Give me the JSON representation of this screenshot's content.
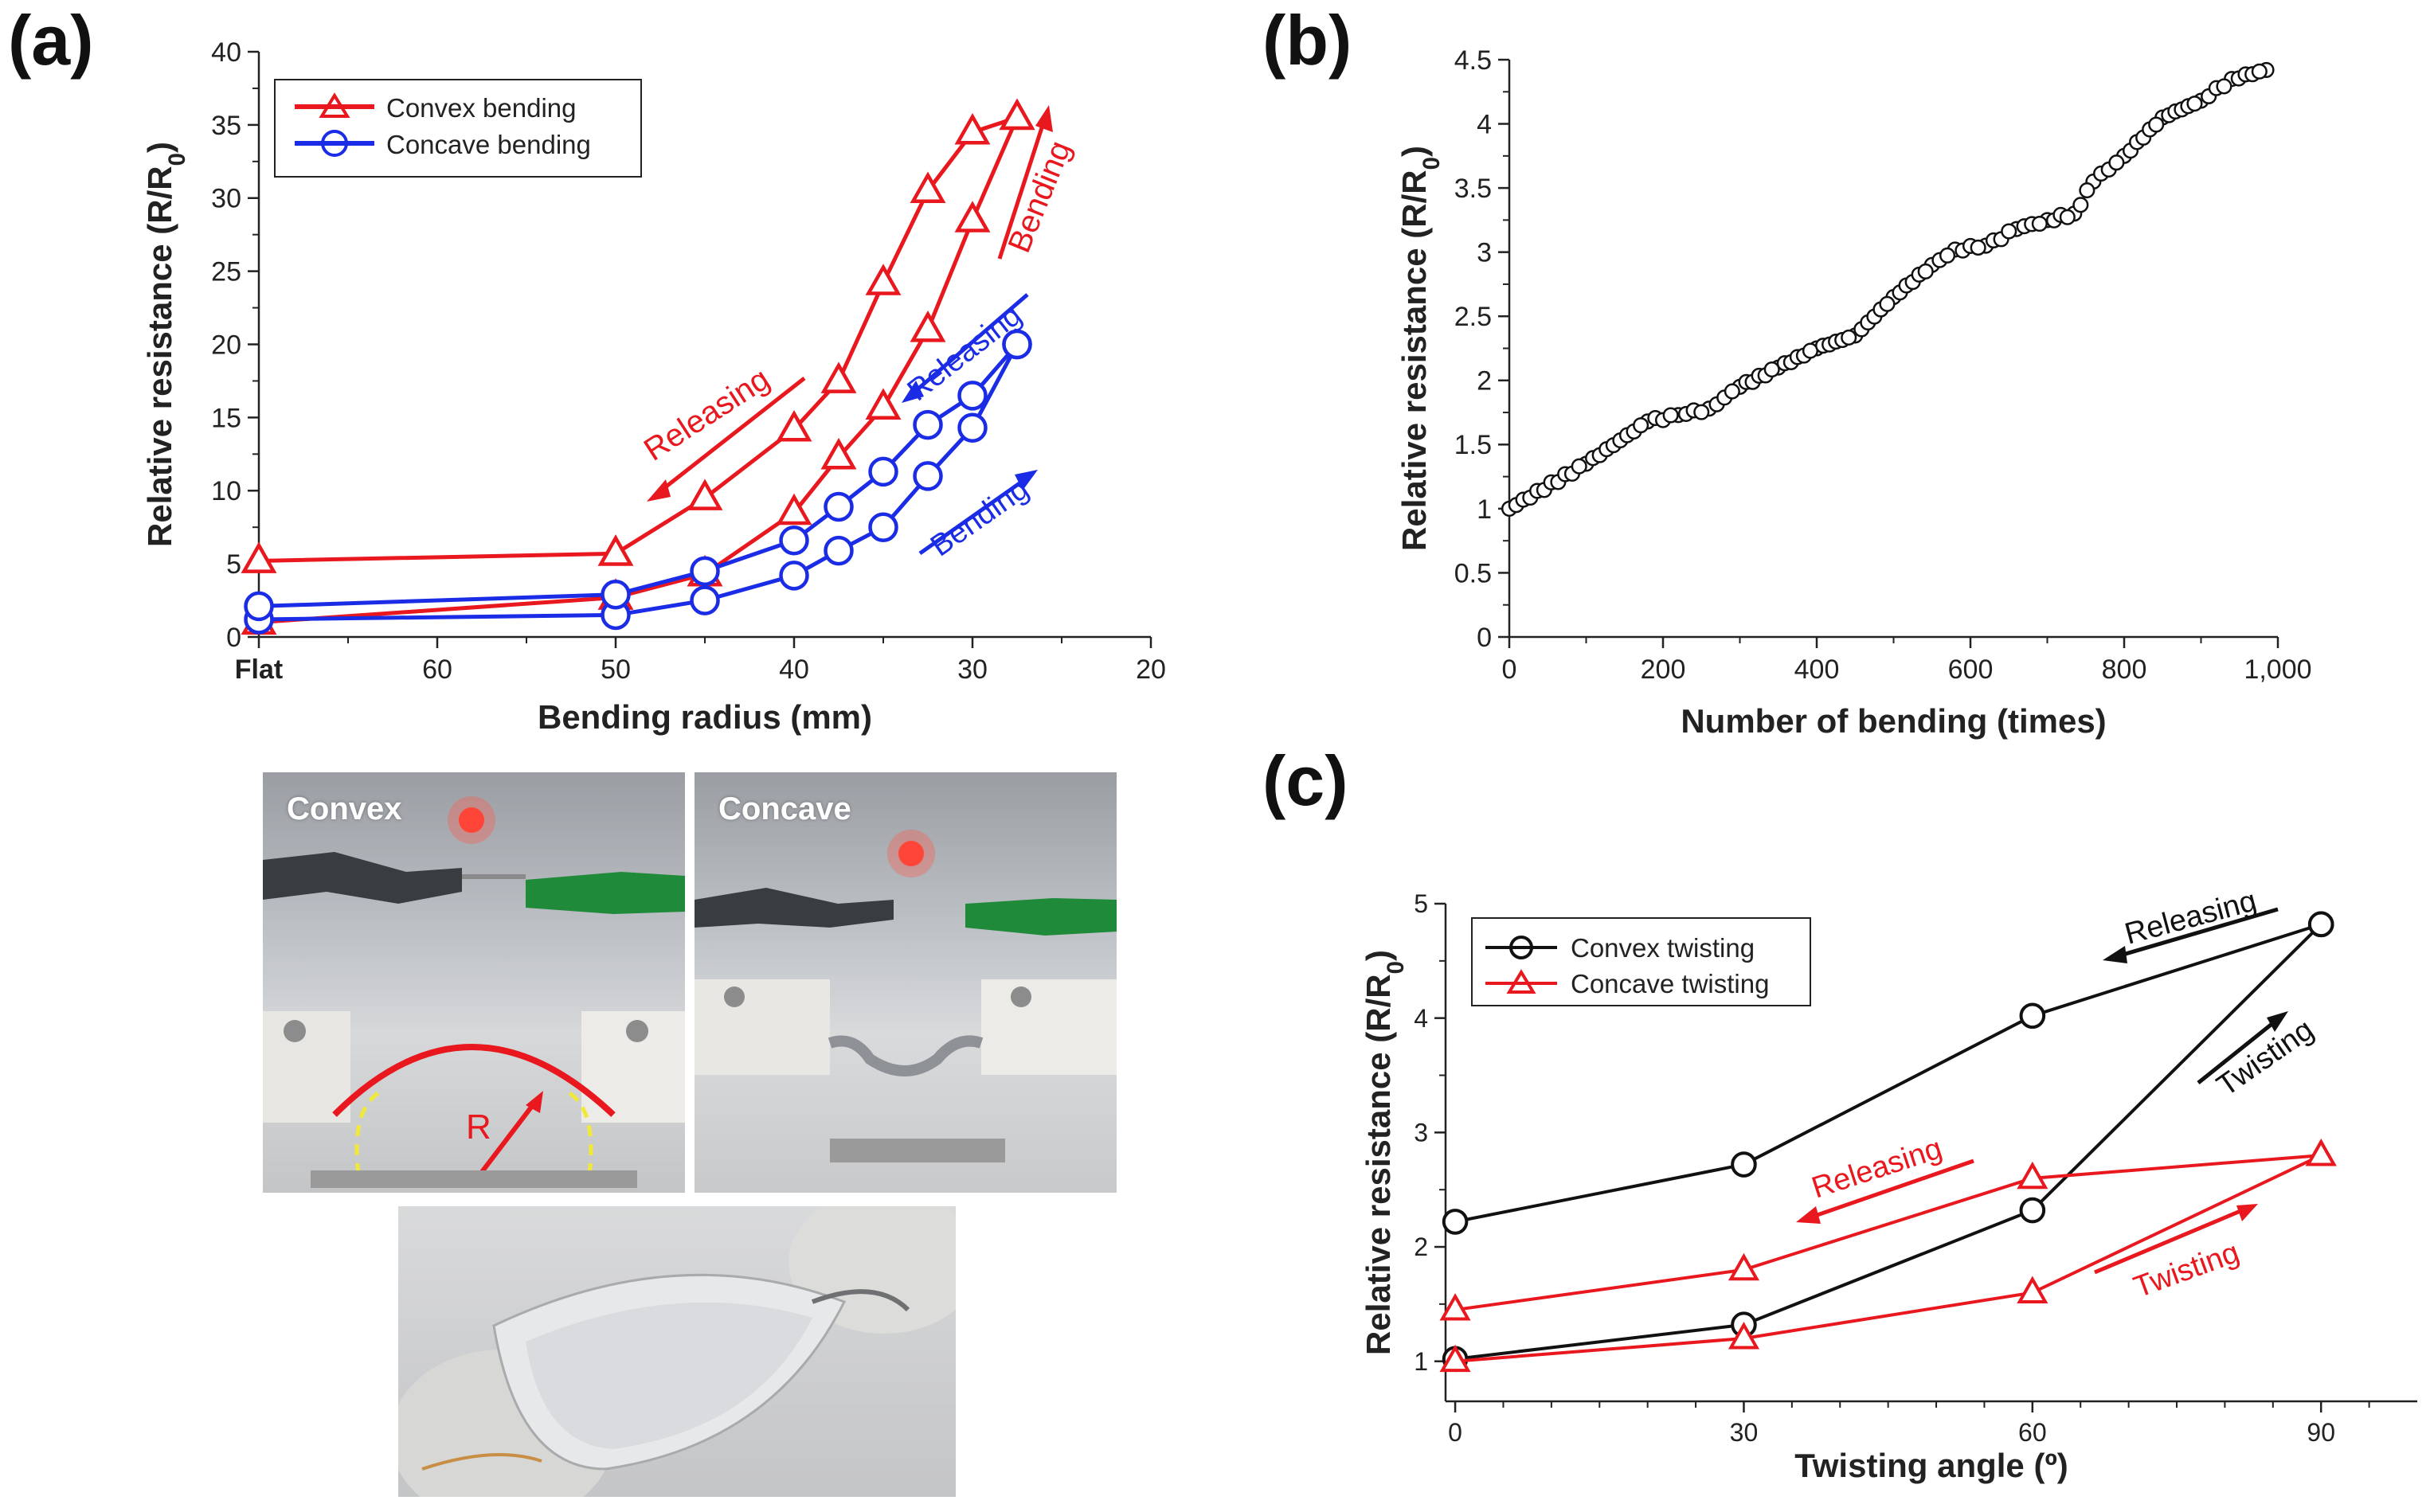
{
  "panels": {
    "a": {
      "label": "(a)"
    },
    "b": {
      "label": "(b)"
    },
    "c": {
      "label": "(c)"
    }
  },
  "photos": {
    "convex_caption": "Convex",
    "concave_caption": "Concave",
    "radius_label": "R"
  },
  "colors": {
    "red": "#e8181e",
    "blue": "#1a2ce6",
    "black": "#111111"
  },
  "chart_data": [
    {
      "id": "a",
      "type": "line",
      "xlabel": "Bending radius (mm)",
      "ylabel": "Relative resistance (R/R₀)",
      "ylabel_main": "Relative resistance (R/R",
      "ylabel_sub": "0",
      "ylabel_close": ")",
      "xlim": [
        70,
        20
      ],
      "ylim": [
        0,
        40
      ],
      "xticks": [
        {
          "v": 70,
          "t": "Flat"
        },
        {
          "v": 60,
          "t": "60"
        },
        {
          "v": 50,
          "t": "50"
        },
        {
          "v": 40,
          "t": "40"
        },
        {
          "v": 30,
          "t": "30"
        },
        {
          "v": 20,
          "t": "20"
        }
      ],
      "yticks": [
        0,
        5,
        10,
        15,
        20,
        25,
        30,
        35,
        40
      ],
      "legend": [
        "Convex bending",
        "Concave bending"
      ],
      "series": [
        {
          "name": "Convex bending",
          "branch": "bending",
          "color": "#e8181e",
          "marker": "triangle",
          "x": [
            70,
            50,
            45,
            40,
            37.5,
            35,
            32.5,
            30,
            27.5
          ],
          "y": [
            1.0,
            2.7,
            4.3,
            8.5,
            12.3,
            15.7,
            21.0,
            28.5,
            35.5
          ]
        },
        {
          "name": "Convex bending",
          "branch": "releasing",
          "color": "#e8181e",
          "marker": "triangle",
          "x": [
            27.5,
            30,
            32.5,
            35,
            37.5,
            40,
            45,
            50,
            70
          ],
          "y": [
            35.5,
            34.5,
            30.5,
            24.2,
            17.5,
            14.2,
            9.5,
            5.7,
            5.2
          ]
        },
        {
          "name": "Concave bending",
          "branch": "bending",
          "color": "#1a2ce6",
          "marker": "circle",
          "x": [
            70,
            50,
            45,
            40,
            37.5,
            35,
            32.5,
            30,
            27.5
          ],
          "y": [
            1.2,
            1.5,
            2.5,
            4.2,
            5.9,
            7.5,
            11.0,
            14.3,
            20.0
          ]
        },
        {
          "name": "Concave bending",
          "branch": "releasing",
          "color": "#1a2ce6",
          "marker": "circle",
          "x": [
            27.5,
            30,
            32.5,
            35,
            37.5,
            40,
            45,
            50,
            70
          ],
          "y": [
            20.0,
            16.5,
            14.5,
            11.3,
            8.9,
            6.6,
            4.5,
            2.9,
            2.1
          ]
        }
      ],
      "annotations": [
        "Releasing",
        "Bending",
        "Releasing",
        "Bending"
      ]
    },
    {
      "id": "b",
      "type": "scatter",
      "xlabel": "Number of bending (times)",
      "ylabel": "Relative resistance (R/R₀)",
      "ylabel_main": "Relative resistance (R/R",
      "ylabel_sub": "0",
      "ylabel_close": ")",
      "xlim": [
        0,
        1000
      ],
      "ylim": [
        0,
        4.5
      ],
      "xticks": [
        {
          "v": 0,
          "t": "0"
        },
        {
          "v": 200,
          "t": "200"
        },
        {
          "v": 400,
          "t": "400"
        },
        {
          "v": 600,
          "t": "600"
        },
        {
          "v": 800,
          "t": "800"
        },
        {
          "v": 1000,
          "t": "1,000"
        }
      ],
      "yticks": [
        {
          "v": 0,
          "t": "0"
        },
        {
          "v": 0.5,
          "t": "0.5"
        },
        {
          "v": 1,
          "t": "1"
        },
        {
          "v": 1.5,
          "t": "1.5"
        },
        {
          "v": 2,
          "t": "2"
        },
        {
          "v": 2.5,
          "t": "2.5"
        },
        {
          "v": 3,
          "t": "3"
        },
        {
          "v": 3.5,
          "t": "3.5"
        },
        {
          "v": 4,
          "t": "4"
        },
        {
          "v": 4.5,
          "t": "4.5"
        }
      ],
      "series": [
        {
          "name": "Relative resistance",
          "color": "#111111",
          "marker": "circle",
          "x": [
            0,
            100,
            180,
            220,
            260,
            300,
            350,
            400,
            450,
            500,
            550,
            580,
            620,
            660,
            700,
            735,
            760,
            800,
            850,
            900,
            940,
            985
          ],
          "y": [
            1.0,
            1.35,
            1.68,
            1.73,
            1.78,
            1.95,
            2.1,
            2.25,
            2.35,
            2.65,
            2.9,
            3.02,
            3.05,
            3.18,
            3.25,
            3.3,
            3.55,
            3.75,
            4.05,
            4.18,
            4.35,
            4.42
          ]
        }
      ]
    },
    {
      "id": "c",
      "type": "line",
      "xlabel": "Twisting angle (º)",
      "ylabel": "Relative resistance (R/R₀)",
      "ylabel_main": "Relative resistance (R/R",
      "ylabel_sub": "0",
      "ylabel_close": ")",
      "xlim": [
        -1,
        100
      ],
      "ylim": [
        0.65,
        5
      ],
      "xticks": [
        {
          "v": 0,
          "t": "0"
        },
        {
          "v": 30,
          "t": "30"
        },
        {
          "v": 60,
          "t": "60"
        },
        {
          "v": 90,
          "t": "90"
        }
      ],
      "yticks": [
        {
          "v": 1,
          "t": "1"
        },
        {
          "v": 2,
          "t": "2"
        },
        {
          "v": 3,
          "t": "3"
        },
        {
          "v": 4,
          "t": "4"
        },
        {
          "v": 5,
          "t": "5"
        }
      ],
      "legend": [
        "Convex twisting",
        "Concave twisting"
      ],
      "series": [
        {
          "name": "Convex twisting",
          "branch": "twisting",
          "color": "#111111",
          "marker": "circle",
          "x": [
            0,
            30,
            60,
            90
          ],
          "y": [
            1.02,
            1.32,
            2.32,
            4.82
          ]
        },
        {
          "name": "Convex twisting",
          "branch": "releasing",
          "color": "#111111",
          "marker": "circle",
          "x": [
            90,
            60,
            30,
            0
          ],
          "y": [
            4.82,
            4.02,
            2.72,
            2.22
          ]
        },
        {
          "name": "Concave twisting",
          "branch": "twisting",
          "color": "#e8181e",
          "marker": "triangle",
          "x": [
            0,
            30,
            60,
            90
          ],
          "y": [
            1.0,
            1.2,
            1.6,
            2.8
          ]
        },
        {
          "name": "Concave twisting",
          "branch": "releasing",
          "color": "#e8181e",
          "marker": "triangle",
          "x": [
            90,
            60,
            30,
            0
          ],
          "y": [
            2.8,
            2.6,
            1.8,
            1.45
          ]
        }
      ],
      "annotations": [
        "Releasing",
        "Twisting",
        "Releasing",
        "Twisting"
      ]
    }
  ]
}
